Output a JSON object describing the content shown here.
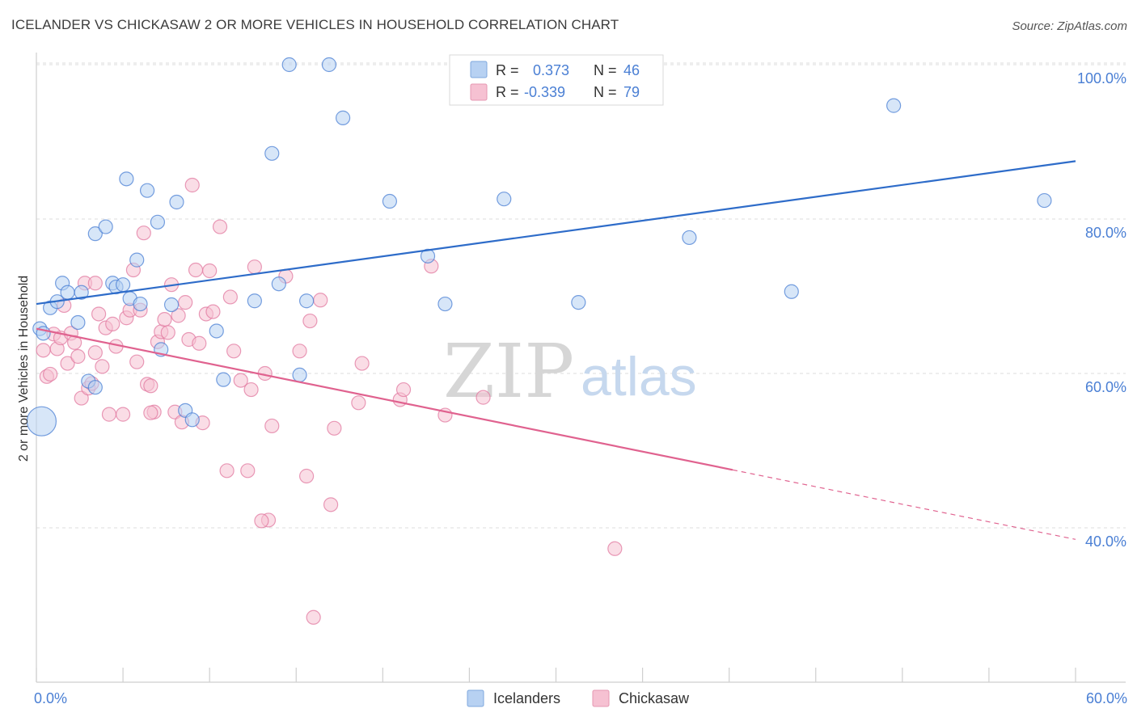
{
  "header": {
    "title": "ICELANDER VS CHICKASAW 2 OR MORE VEHICLES IN HOUSEHOLD CORRELATION CHART",
    "source": "Source: ZipAtlas.com"
  },
  "colors": {
    "blue": "#4a7fd4",
    "blue_fill": "#b7d1f2",
    "blue_line": "#2e6cc9",
    "pink": "#e27aa0",
    "pink_fill": "#f6c1d2",
    "pink_line": "#e0628f",
    "tick_text": "#4a7fd4",
    "grid": "#dddddd"
  },
  "watermark": {
    "zip": "ZIP",
    "atlas": "atlas"
  },
  "legend_top": {
    "rows": [
      {
        "r_label": "R =",
        "r_value": "0.373",
        "n_label": "N =",
        "n_value": "46"
      },
      {
        "r_label": "R =",
        "r_value": "-0.339",
        "n_label": "N =",
        "n_value": "79"
      }
    ]
  },
  "legend_bottom": {
    "items": [
      "Icelanders",
      "Chickasaw"
    ]
  },
  "chart_data": {
    "type": "scatter",
    "title": "ICELANDER VS CHICKASAW 2 OR MORE VEHICLES IN HOUSEHOLD CORRELATION CHART",
    "ylabel": "2 or more Vehicles in Household",
    "xlabel": "",
    "xlim": [
      0,
      60
    ],
    "ylim": [
      18.5,
      102
    ],
    "x_tick_labels": [
      {
        "value": 0,
        "label": "0.0%"
      },
      {
        "value": 60,
        "label": "60.0%"
      }
    ],
    "y_tick_labels": [
      {
        "value": 100,
        "label": "100.0%"
      },
      {
        "value": 80,
        "label": "80.0%"
      },
      {
        "value": 60,
        "label": "60.0%"
      },
      {
        "value": 40,
        "label": "40.0%"
      }
    ],
    "grid": true,
    "legend_position": "top-center",
    "series": [
      {
        "name": "Icelanders",
        "r": 0.373,
        "n": 46,
        "trend": {
          "x0": 0,
          "y0": 69.0,
          "x1": 60,
          "y1": 87.5,
          "dashed_from": null
        },
        "points": [
          [
            0.2,
            65.8
          ],
          [
            0.4,
            65.2
          ],
          [
            0.8,
            68.5
          ],
          [
            1.2,
            69.3
          ],
          [
            1.5,
            71.7
          ],
          [
            1.8,
            70.5
          ],
          [
            2.4,
            66.6
          ],
          [
            2.6,
            70.5
          ],
          [
            3.0,
            59.0
          ],
          [
            3.4,
            58.2
          ],
          [
            3.4,
            78.1
          ],
          [
            4.0,
            79.0
          ],
          [
            4.4,
            71.7
          ],
          [
            4.6,
            71.2
          ],
          [
            5.0,
            71.5
          ],
          [
            5.2,
            85.2
          ],
          [
            5.4,
            69.7
          ],
          [
            5.8,
            74.7
          ],
          [
            6.4,
            83.7
          ],
          [
            7.0,
            79.6
          ],
          [
            7.2,
            63.1
          ],
          [
            7.8,
            68.9
          ],
          [
            8.1,
            82.2
          ],
          [
            8.6,
            55.2
          ],
          [
            9.0,
            54.0
          ],
          [
            10.4,
            65.5
          ],
          [
            10.8,
            59.2
          ],
          [
            12.6,
            69.4
          ],
          [
            13.6,
            88.5
          ],
          [
            14.0,
            71.6
          ],
          [
            14.6,
            100.0
          ],
          [
            15.2,
            59.8
          ],
          [
            15.6,
            69.4
          ],
          [
            16.9,
            100.0
          ],
          [
            17.7,
            93.1
          ],
          [
            20.4,
            82.3
          ],
          [
            22.6,
            75.2
          ],
          [
            23.6,
            69.0
          ],
          [
            27.0,
            82.6
          ],
          [
            31.3,
            69.2
          ],
          [
            37.7,
            77.6
          ],
          [
            43.6,
            70.6
          ],
          [
            49.5,
            94.7
          ],
          [
            58.2,
            82.4
          ],
          [
            0.3,
            53.8
          ],
          [
            6.0,
            69.0
          ]
        ]
      },
      {
        "name": "Chickasaw",
        "r": -0.339,
        "n": 79,
        "trend": {
          "x0": 0,
          "y0": 65.8,
          "x1": 60,
          "y1": 38.5,
          "dashed_from": 40.2
        },
        "points": [
          [
            0.4,
            63.0
          ],
          [
            0.6,
            59.6
          ],
          [
            0.8,
            59.9
          ],
          [
            1.0,
            65.1
          ],
          [
            1.2,
            63.2
          ],
          [
            1.4,
            64.6
          ],
          [
            1.6,
            68.8
          ],
          [
            1.8,
            61.3
          ],
          [
            2.0,
            65.2
          ],
          [
            2.2,
            64.0
          ],
          [
            2.4,
            62.2
          ],
          [
            2.6,
            56.8
          ],
          [
            2.8,
            71.7
          ],
          [
            3.0,
            58.1
          ],
          [
            3.2,
            58.7
          ],
          [
            3.4,
            62.7
          ],
          [
            3.6,
            67.7
          ],
          [
            3.8,
            60.9
          ],
          [
            4.0,
            65.9
          ],
          [
            4.2,
            54.7
          ],
          [
            4.4,
            66.4
          ],
          [
            4.6,
            63.5
          ],
          [
            5.0,
            54.7
          ],
          [
            5.2,
            67.2
          ],
          [
            5.4,
            68.2
          ],
          [
            5.6,
            73.4
          ],
          [
            5.8,
            61.5
          ],
          [
            6.0,
            68.2
          ],
          [
            6.2,
            78.2
          ],
          [
            6.4,
            58.6
          ],
          [
            6.6,
            58.4
          ],
          [
            6.8,
            55.0
          ],
          [
            7.0,
            64.1
          ],
          [
            7.2,
            65.4
          ],
          [
            7.4,
            67.0
          ],
          [
            7.6,
            65.3
          ],
          [
            7.8,
            71.5
          ],
          [
            8.0,
            55.0
          ],
          [
            8.2,
            67.5
          ],
          [
            8.4,
            53.7
          ],
          [
            8.6,
            69.2
          ],
          [
            8.8,
            64.4
          ],
          [
            9.0,
            84.4
          ],
          [
            9.2,
            73.4
          ],
          [
            9.4,
            63.9
          ],
          [
            9.6,
            53.6
          ],
          [
            9.8,
            67.7
          ],
          [
            10.0,
            73.3
          ],
          [
            10.2,
            68.0
          ],
          [
            10.6,
            79.0
          ],
          [
            11.0,
            47.4
          ],
          [
            11.2,
            69.9
          ],
          [
            11.4,
            62.9
          ],
          [
            11.8,
            59.1
          ],
          [
            12.2,
            47.4
          ],
          [
            12.4,
            57.9
          ],
          [
            12.6,
            73.8
          ],
          [
            13.2,
            60.0
          ],
          [
            13.4,
            41.0
          ],
          [
            13.6,
            53.2
          ],
          [
            14.4,
            72.6
          ],
          [
            15.2,
            62.9
          ],
          [
            15.6,
            46.7
          ],
          [
            15.8,
            66.8
          ],
          [
            16.4,
            69.5
          ],
          [
            17.0,
            43.0
          ],
          [
            17.2,
            52.9
          ],
          [
            18.6,
            56.2
          ],
          [
            18.8,
            61.3
          ],
          [
            21.0,
            56.6
          ],
          [
            21.2,
            57.9
          ],
          [
            22.8,
            73.9
          ],
          [
            23.6,
            54.6
          ],
          [
            25.8,
            56.9
          ],
          [
            33.4,
            37.3
          ],
          [
            16.0,
            28.4
          ],
          [
            3.4,
            71.7
          ],
          [
            6.6,
            54.9
          ],
          [
            13.0,
            40.9
          ]
        ]
      }
    ]
  }
}
